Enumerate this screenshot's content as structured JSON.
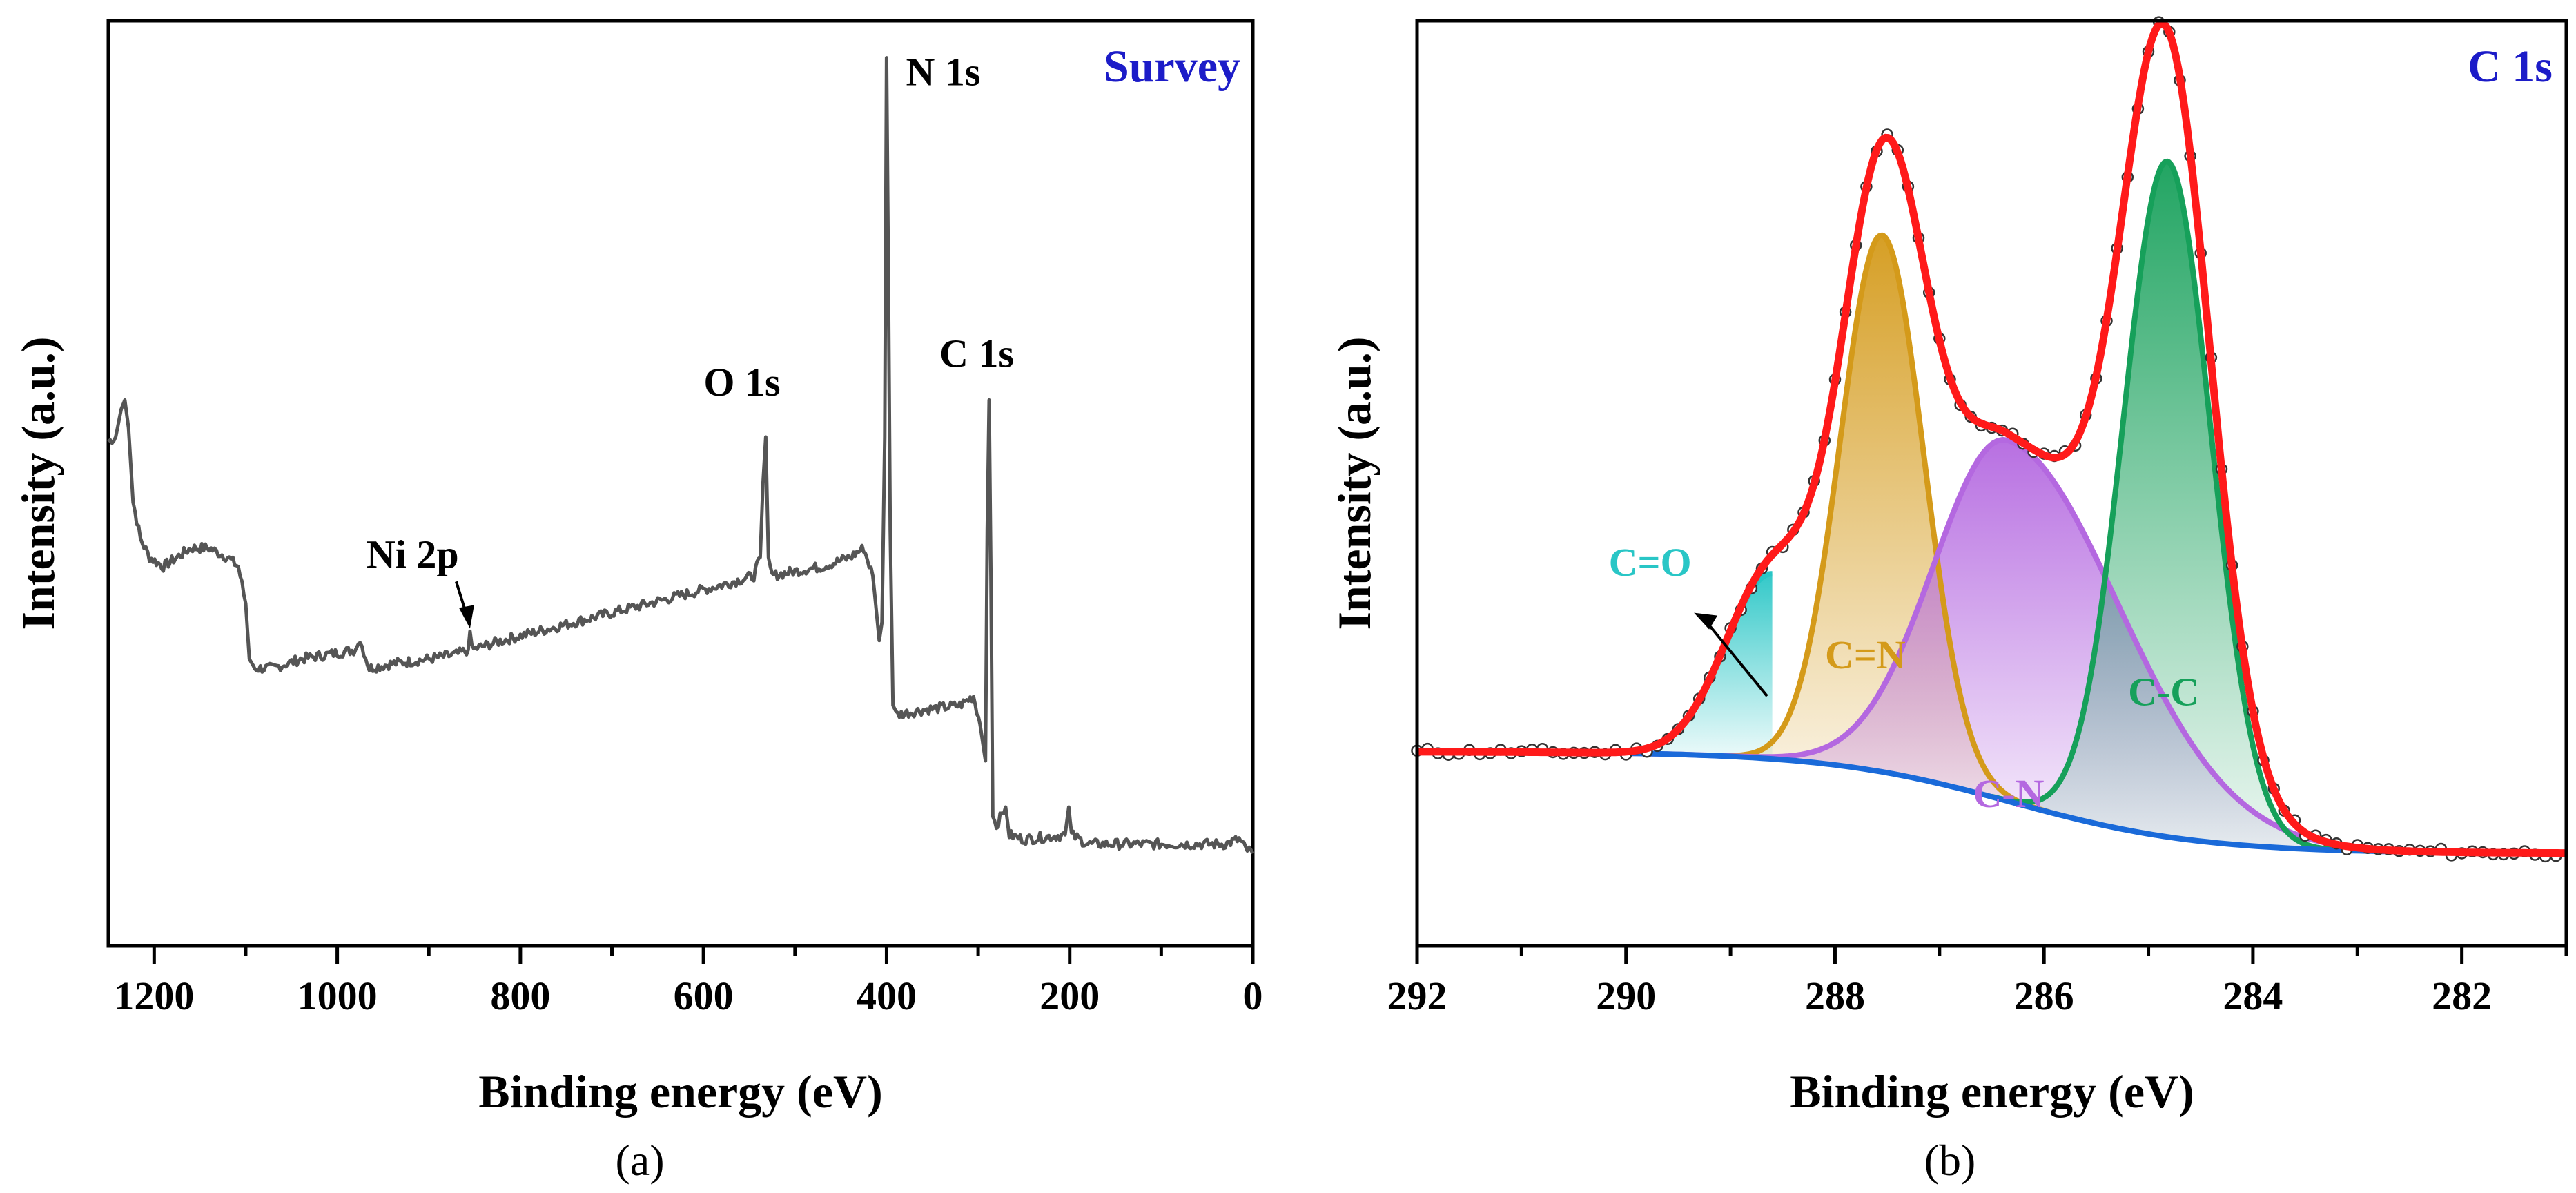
{
  "figure": {
    "panels": [
      "a",
      "b"
    ],
    "captions": [
      "(a)",
      "(b)"
    ]
  },
  "colors": {
    "survey_line": "#555555",
    "title_blue": "#1c1cc8",
    "data_points": "#333333",
    "envelope": "#ff1a1a",
    "background_line": "#1a6ad9",
    "c_o": "#29c6c6",
    "c_n_double": "#d49a1a",
    "c_n_single": "#b468e0",
    "c_c": "#16a05a"
  },
  "chart_data": [
    {
      "type": "line",
      "panel": "a",
      "title": "Survey",
      "caption": "(a)",
      "xlabel": "Binding energy (eV)",
      "ylabel": "Intensity (a.u.)",
      "xlim": [
        1250,
        0
      ],
      "ylim": [
        0,
        100
      ],
      "x_ticks": [
        1200,
        1000,
        800,
        600,
        400,
        200,
        0
      ],
      "x_tick_labels": [
        "1200",
        "1000",
        "800",
        "600",
        "400",
        "200",
        "0"
      ],
      "series": [
        {
          "name": "survey spectrum",
          "points": [
            [
              1250,
              54.5
            ],
            [
              1242,
              55
            ],
            [
              1236,
              58
            ],
            [
              1232,
              59
            ],
            [
              1228,
              56
            ],
            [
              1223,
              48
            ],
            [
              1215,
              44
            ],
            [
              1205,
              42
            ],
            [
              1190,
              41
            ],
            [
              1175,
              42
            ],
            [
              1160,
              43
            ],
            [
              1140,
              43
            ],
            [
              1120,
              42
            ],
            [
              1108,
              41
            ],
            [
              1100,
              37
            ],
            [
              1096,
              31
            ],
            [
              1090,
              30
            ],
            [
              1070,
              30
            ],
            [
              1040,
              31
            ],
            [
              1010,
              31.5
            ],
            [
              980,
              32
            ],
            [
              975,
              33
            ],
            [
              965,
              30
            ],
            [
              940,
              30.5
            ],
            [
              900,
              31
            ],
            [
              870,
              31.5
            ],
            [
              857,
              32
            ],
            [
              855,
              34
            ],
            [
              853,
              32
            ],
            [
              820,
              33
            ],
            [
              780,
              34
            ],
            [
              740,
              35
            ],
            [
              700,
              36
            ],
            [
              660,
              37
            ],
            [
              620,
              38
            ],
            [
              580,
              39
            ],
            [
              545,
              40
            ],
            [
              538,
              42
            ],
            [
              535,
              50
            ],
            [
              532,
              55
            ],
            [
              529,
              42
            ],
            [
              525,
              40
            ],
            [
              500,
              40.5
            ],
            [
              470,
              41
            ],
            [
              440,
              42
            ],
            [
              425,
              43
            ],
            [
              415,
              40
            ],
            [
              408,
              33
            ],
            [
              405,
              35
            ],
            [
              402,
              55
            ],
            [
              400,
              96
            ],
            [
              398,
              72
            ],
            [
              396,
              45
            ],
            [
              393,
              26
            ],
            [
              388,
              25
            ],
            [
              360,
              25.5
            ],
            [
              320,
              26
            ],
            [
              305,
              27
            ],
            [
              298,
              24
            ],
            [
              292,
              20
            ],
            [
              290,
              45
            ],
            [
              288,
              59
            ],
            [
              286,
              40
            ],
            [
              284,
              14
            ],
            [
              280,
              13
            ],
            [
              270,
              15
            ],
            [
              266,
              12
            ],
            [
              250,
              11.5
            ],
            [
              205,
              12
            ],
            [
              201,
              15
            ],
            [
              198,
              12
            ],
            [
              180,
              11
            ],
            [
              100,
              11
            ],
            [
              30,
              11
            ],
            [
              15,
              11.5
            ],
            [
              8,
              10.5
            ],
            [
              0,
              10
            ]
          ]
        }
      ],
      "annotations": [
        {
          "text": "Ni 2p",
          "x": 855,
          "y": 34,
          "arrow": true
        },
        {
          "text": "O 1s",
          "x": 532,
          "y": 55
        },
        {
          "text": "N 1s",
          "x": 400,
          "y": 96
        },
        {
          "text": "C 1s",
          "x": 288,
          "y": 59
        }
      ]
    },
    {
      "type": "area",
      "panel": "b",
      "title": "C 1s",
      "caption": "(b)",
      "xlabel": "Binding energy (eV)",
      "ylabel": "Intensity (a.u.)",
      "xlim": [
        292,
        281
      ],
      "ylim": [
        0,
        100
      ],
      "x_ticks": [
        292,
        290,
        288,
        286,
        284,
        282
      ],
      "x_tick_labels": [
        "292",
        "290",
        "288",
        "286",
        "284",
        "282"
      ],
      "background": {
        "start": [
          292,
          21
        ],
        "end": [
          281,
          10
        ]
      },
      "components": [
        {
          "name": "C=O",
          "center": 288.6,
          "height": 20,
          "sigma": 0.45,
          "cut_side": "left"
        },
        {
          "name": "C=N",
          "center": 287.55,
          "height": 58,
          "sigma": 0.4
        },
        {
          "name": "C-N",
          "center": 286.35,
          "height": 39,
          "sigma": 0.7,
          "tail": "low"
        },
        {
          "name": "C-C",
          "center": 284.82,
          "height": 73,
          "sigma": 0.42
        }
      ],
      "envelope_name": "fit",
      "points_name": "raw data",
      "annotations": [
        {
          "text": "C=O",
          "x": 289.5,
          "y": 42,
          "arrow": true
        }
      ]
    }
  ]
}
